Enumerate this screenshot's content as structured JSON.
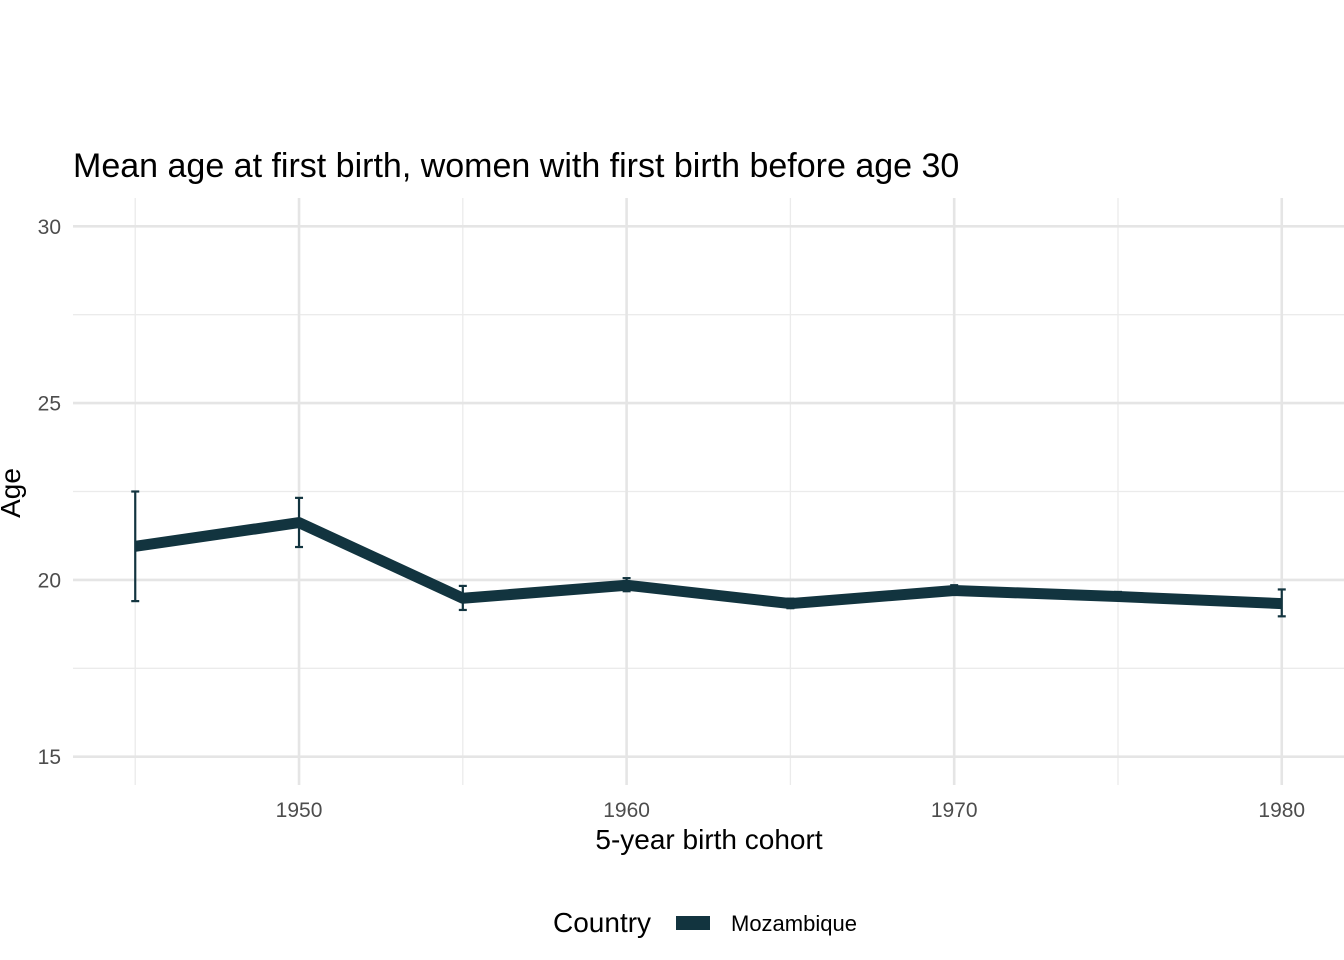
{
  "chart_data": {
    "type": "line",
    "title": "Mean age at first birth, women with first birth before age 30",
    "xlabel": "5-year birth cohort",
    "ylabel": "Age",
    "xlim": [
      1943.1,
      1981.9
    ],
    "ylim": [
      14.2,
      30.8
    ],
    "x_ticks": [
      1950,
      1960,
      1970,
      1980
    ],
    "x_minor_ticks": [
      1945,
      1955,
      1965,
      1975
    ],
    "y_ticks": [
      15,
      20,
      25,
      30
    ],
    "y_minor_ticks": [
      17.5,
      22.5,
      27.5
    ],
    "grid": true,
    "legend": {
      "title": "Country",
      "position": "bottom"
    },
    "series": [
      {
        "name": "Mozambique",
        "color": "#12343f",
        "x": [
          1945,
          1950,
          1955,
          1960,
          1965,
          1970,
          1975,
          1980
        ],
        "y": [
          20.95,
          21.62,
          19.48,
          19.85,
          19.33,
          19.7,
          19.53,
          19.33
        ],
        "error_low": [
          19.4,
          20.93,
          19.15,
          19.68,
          19.2,
          19.58,
          19.42,
          18.97
        ],
        "error_high": [
          22.5,
          22.32,
          19.83,
          20.05,
          19.47,
          19.85,
          19.66,
          19.73
        ]
      }
    ]
  }
}
